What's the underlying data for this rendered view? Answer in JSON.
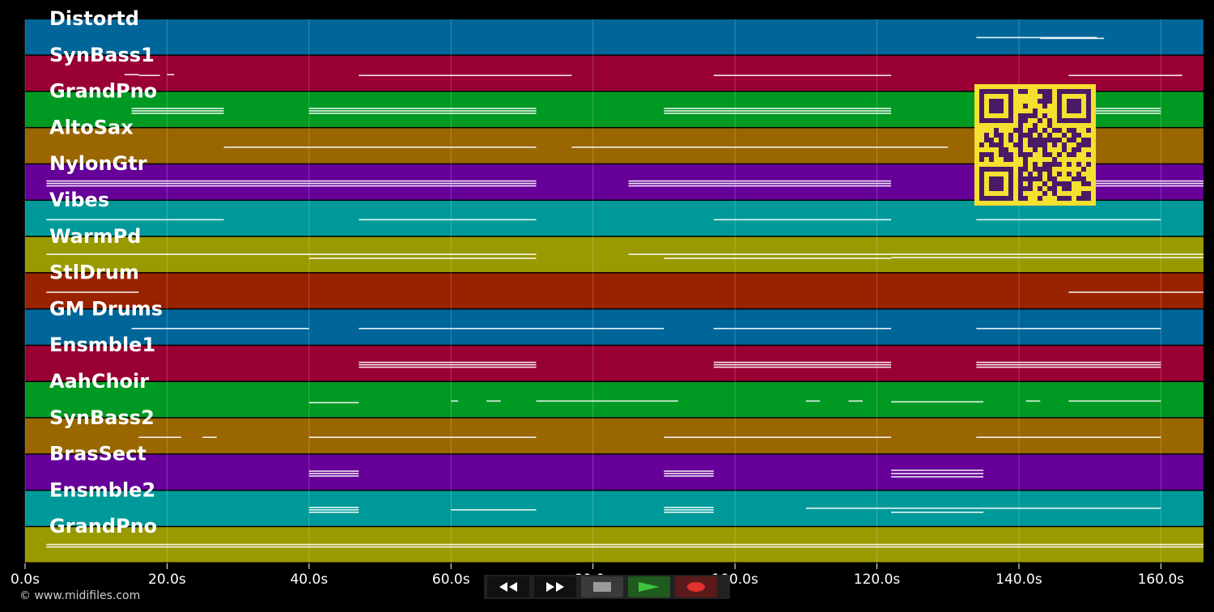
{
  "tracks": [
    {
      "name": "Distortd",
      "color": "#006699",
      "notes": [
        [
          134,
          151,
          -1
        ],
        [
          143,
          152,
          0
        ]
      ]
    },
    {
      "name": "SynBass1",
      "color": "#990033",
      "notes": [
        [
          14,
          16,
          0
        ],
        [
          16,
          19,
          1
        ],
        [
          20,
          21,
          0
        ],
        [
          47,
          77,
          1
        ],
        [
          97,
          122,
          1
        ],
        [
          147,
          163,
          1
        ]
      ]
    },
    {
      "name": "GrandPno",
      "color": "#009922",
      "notes": [
        [
          15,
          28,
          -3
        ],
        [
          15,
          28,
          0
        ],
        [
          15,
          28,
          3
        ],
        [
          40,
          72,
          -3
        ],
        [
          40,
          72,
          0
        ],
        [
          40,
          72,
          3
        ],
        [
          90,
          122,
          -3
        ],
        [
          90,
          122,
          0
        ],
        [
          90,
          122,
          3
        ],
        [
          149,
          160,
          -3
        ],
        [
          149,
          160,
          0
        ],
        [
          149,
          160,
          3
        ]
      ]
    },
    {
      "name": "AltoSax",
      "color": "#996600",
      "notes": [
        [
          28,
          72,
          0
        ],
        [
          77,
          130,
          0
        ]
      ]
    },
    {
      "name": "NylonGtr",
      "color": "#660099",
      "notes": [
        [
          3,
          72,
          -3
        ],
        [
          3,
          72,
          0
        ],
        [
          3,
          72,
          3
        ],
        [
          85,
          122,
          -3
        ],
        [
          85,
          122,
          0
        ],
        [
          85,
          122,
          3
        ],
        [
          140,
          166,
          -3
        ],
        [
          140,
          166,
          0
        ],
        [
          140,
          166,
          3
        ]
      ]
    },
    {
      "name": "Vibes",
      "color": "#009999",
      "notes": [
        [
          3,
          28,
          0
        ],
        [
          47,
          72,
          0
        ],
        [
          97,
          122,
          0
        ],
        [
          134,
          160,
          0
        ]
      ]
    },
    {
      "name": "WarmPd",
      "color": "#999900",
      "notes": [
        [
          3,
          72,
          -2
        ],
        [
          40,
          72,
          3
        ],
        [
          85,
          166,
          -2
        ],
        [
          90,
          122,
          3
        ],
        [
          122,
          166,
          2
        ]
      ]
    },
    {
      "name": "StlDrum",
      "color": "#992200",
      "notes": [
        [
          3,
          16,
          0
        ],
        [
          147,
          166,
          0
        ]
      ]
    },
    {
      "name": "GM Drums",
      "color": "#006699",
      "notes": [
        [
          15,
          40,
          0
        ],
        [
          47,
          90,
          0
        ],
        [
          97,
          122,
          0
        ],
        [
          134,
          160,
          0
        ]
      ]
    },
    {
      "name": "Ensmble1",
      "color": "#990033",
      "notes": [
        [
          47,
          72,
          -3
        ],
        [
          47,
          72,
          0
        ],
        [
          47,
          72,
          3
        ],
        [
          97,
          122,
          -3
        ],
        [
          97,
          122,
          0
        ],
        [
          97,
          122,
          3
        ],
        [
          134,
          160,
          -3
        ],
        [
          134,
          160,
          0
        ],
        [
          134,
          160,
          3
        ]
      ]
    },
    {
      "name": "AahChoir",
      "color": "#009922",
      "notes": [
        [
          40,
          47,
          2
        ],
        [
          60,
          61,
          0
        ],
        [
          65,
          67,
          0
        ],
        [
          72,
          92,
          0
        ],
        [
          110,
          112,
          0
        ],
        [
          116,
          118,
          0
        ],
        [
          122,
          135,
          1
        ],
        [
          141,
          143,
          0
        ],
        [
          147,
          160,
          0
        ]
      ]
    },
    {
      "name": "SynBass2",
      "color": "#996600",
      "notes": [
        [
          16,
          22,
          0
        ],
        [
          25,
          27,
          0
        ],
        [
          40,
          72,
          0
        ],
        [
          90,
          122,
          0
        ],
        [
          134,
          160,
          0
        ]
      ]
    },
    {
      "name": "BrasSect",
      "color": "#660099",
      "notes": [
        [
          40,
          47,
          -3
        ],
        [
          40,
          47,
          0
        ],
        [
          40,
          47,
          3
        ],
        [
          90,
          97,
          -3
        ],
        [
          90,
          97,
          0
        ],
        [
          90,
          97,
          3
        ],
        [
          122,
          135,
          -4
        ],
        [
          122,
          135,
          0
        ],
        [
          122,
          135,
          4
        ]
      ]
    },
    {
      "name": "Ensmble2",
      "color": "#009999",
      "notes": [
        [
          40,
          47,
          -3
        ],
        [
          40,
          47,
          0
        ],
        [
          40,
          47,
          3
        ],
        [
          60,
          72,
          0
        ],
        [
          90,
          97,
          -3
        ],
        [
          90,
          97,
          0
        ],
        [
          90,
          97,
          3
        ],
        [
          110,
          160,
          -2
        ],
        [
          122,
          135,
          3
        ]
      ]
    },
    {
      "name": "GrandPno",
      "color": "#999900",
      "notes": [
        [
          3,
          166,
          -2
        ],
        [
          3,
          166,
          1
        ]
      ]
    }
  ],
  "axis": {
    "min": 0,
    "max": 166,
    "ticks": [
      {
        "value": 0,
        "label": "0.0s"
      },
      {
        "value": 20,
        "label": "20.0s"
      },
      {
        "value": 40,
        "label": "40.0s"
      },
      {
        "value": 60,
        "label": "60.0s"
      },
      {
        "value": 80,
        "label": "80.0s"
      },
      {
        "value": 100,
        "label": "100.0s"
      },
      {
        "value": 120,
        "label": "120.0s"
      },
      {
        "value": 140,
        "label": "140.0s"
      },
      {
        "value": 160,
        "label": "160.0s"
      }
    ]
  },
  "footer": {
    "copyright": "© www.midifiles.com"
  },
  "transport": {
    "rewind": "rewind-icon",
    "forward": "fast-forward-icon",
    "stop": "stop-icon",
    "play": "play-icon",
    "record": "record-icon"
  },
  "colors": {
    "background": "#000000",
    "grid": "#ffffff",
    "note": "#ffffff",
    "qr": "#f5e030",
    "qr_dark": "#4a1a66"
  }
}
